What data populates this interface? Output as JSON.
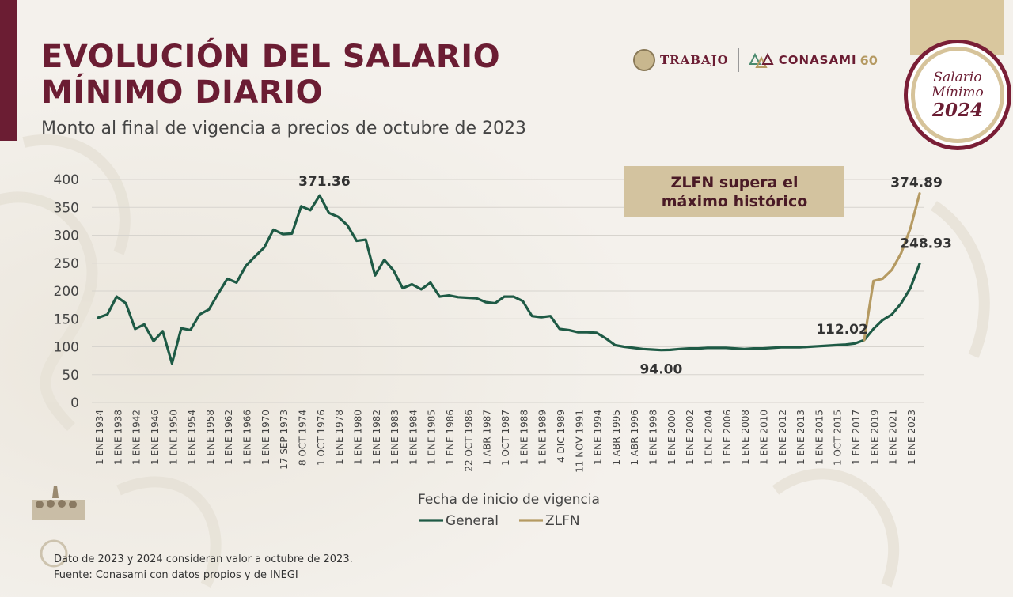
{
  "header": {
    "title_line1": "EVOLUCIÓN DEL SALARIO",
    "title_line2": "MÍNIMO DIARIO",
    "subtitle": "Monto al final de vigencia a precios de octubre de 2023"
  },
  "logos": {
    "trabajo": "TRABAJO",
    "conasami": "CONASAMI",
    "sixty": "60"
  },
  "badge": {
    "line1": "Salario",
    "line2": "Mínimo",
    "year": "2024"
  },
  "annotation": {
    "line1": "ZLFN supera el",
    "line2": "máximo histórico"
  },
  "footer": {
    "note": "Dato de 2023 y 2024 consideran valor a octubre de 2023.",
    "source": "Fuente: Conasami con datos propios y de INEGI"
  },
  "colors": {
    "brand": "#6b1d33",
    "general": "#1e5a45",
    "zlfn": "#b59a62",
    "grid": "#d7d4ce"
  },
  "chart_data": {
    "type": "line",
    "xlabel": "Fecha de inicio de vigencia",
    "ylabel": "",
    "ylim": [
      0,
      400
    ],
    "yticks": [
      0,
      50,
      100,
      150,
      200,
      250,
      300,
      350,
      400
    ],
    "grid": true,
    "legend_position": "bottom",
    "tick_labels": [
      "1 ENE 1934",
      "1 ENE 1938",
      "1 ENE 1942",
      "1 ENE 1946",
      "1 ENE 1950",
      "1 ENE 1954",
      "1 ENE 1958",
      "1 ENE 1962",
      "1 ENE 1966",
      "1 ENE 1970",
      "17 SEP 1973",
      "8 OCT 1974",
      "1 OCT 1976",
      "1 ENE 1978",
      "1 ENE 1980",
      "1 ENE 1982",
      "1 ENE 1983",
      "1 ENE 1984",
      "1 ENE 1985",
      "1 ENE 1986",
      "22 OCT 1986",
      "1 ABR 1987",
      "1 OCT 1987",
      "1 ENE 1988",
      "1 ENE 1989",
      "4 DIC 1989",
      "11 NOV 1991",
      "1 ENE 1994",
      "1 ABR 1995",
      "1 ABR 1996",
      "1 ENE 1998",
      "1 ENE 2000",
      "1 ENE 2002",
      "1 ENE 2004",
      "1 ENE 2006",
      "1 ENE 2008",
      "1 ENE 2010",
      "1 ENE 2012",
      "1 ENE 2013",
      "1 ENE 2015",
      "1 OCT 2015",
      "1 ENE 2017",
      "1 ENE 2019",
      "1 ENE 2021",
      "1 ENE 2023"
    ],
    "series": [
      {
        "name": "General",
        "color": "#1e5a45",
        "values": [
          152,
          158,
          190,
          178,
          132,
          140,
          110,
          128,
          70,
          133,
          130,
          158,
          167,
          195,
          222,
          215,
          245,
          262,
          278,
          310,
          302,
          303,
          352,
          345,
          371.36,
          340,
          333,
          318,
          290,
          292,
          228,
          256,
          237,
          205,
          212,
          203,
          215,
          190,
          192,
          189,
          188,
          187,
          180,
          178,
          190,
          190,
          182,
          155,
          153,
          155,
          132,
          130,
          126,
          126,
          125,
          115,
          103,
          100,
          98,
          96,
          95,
          94.0,
          94.5,
          96,
          97,
          97,
          98,
          98,
          98,
          97,
          96,
          97,
          97,
          98,
          99,
          99,
          99,
          100,
          101,
          102,
          103,
          104,
          106,
          112.02,
          132,
          148,
          158,
          178,
          205,
          248.93
        ]
      },
      {
        "name": "ZLFN",
        "color": "#b59a62",
        "start_index": 83,
        "values": [
          112.02,
          218,
          222,
          238,
          268,
          312,
          374.89
        ]
      }
    ],
    "annotations": [
      {
        "label": "371.36",
        "series": 0,
        "index": 24
      },
      {
        "label": "94.00",
        "series": 0,
        "index": 61
      },
      {
        "label": "112.02",
        "series": 0,
        "index": 83
      },
      {
        "label": "248.93",
        "series": 0,
        "index": 89
      },
      {
        "label": "374.89",
        "series": 1,
        "index": 6
      }
    ]
  }
}
